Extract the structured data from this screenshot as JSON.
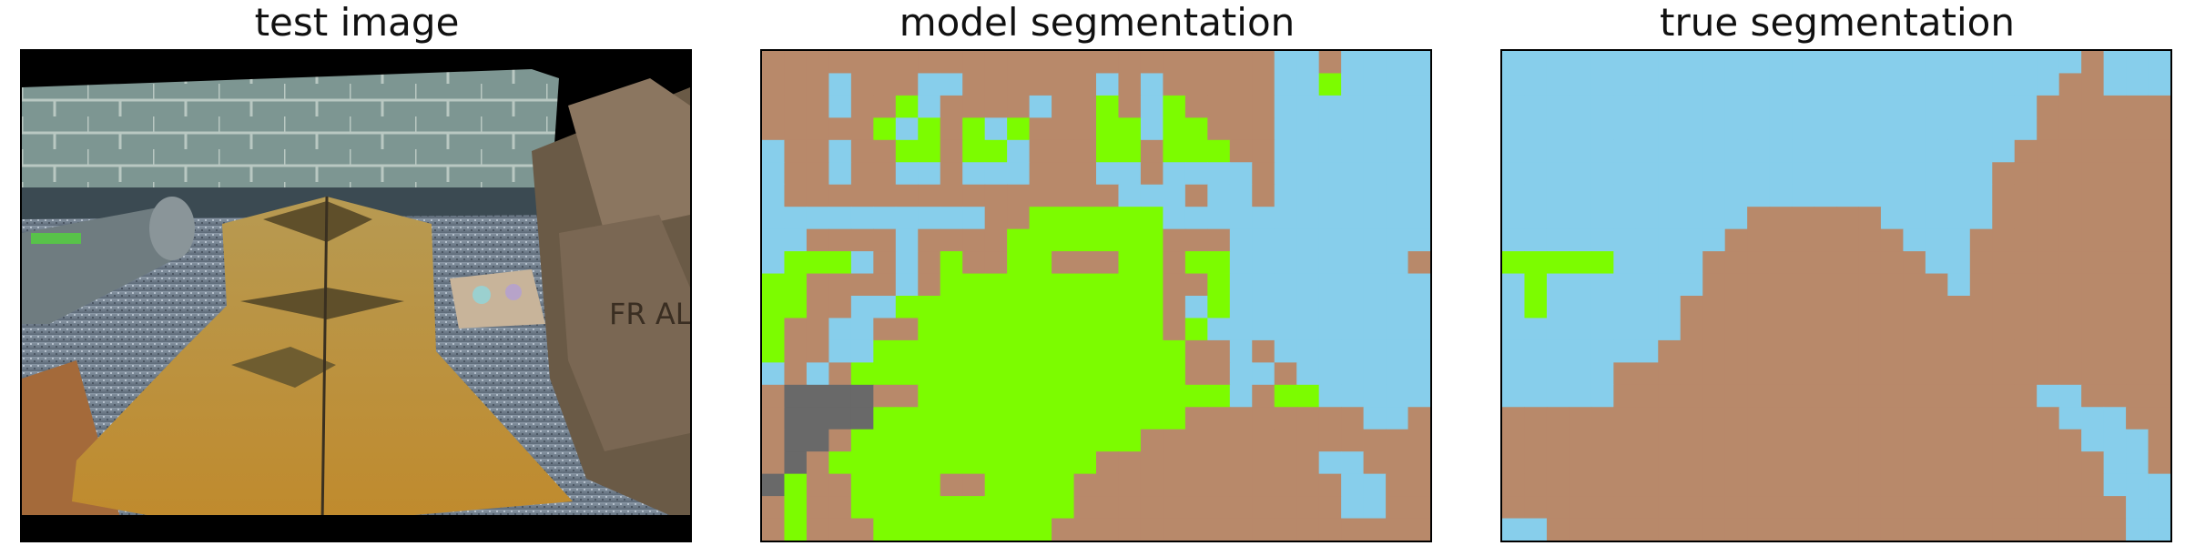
{
  "panels": [
    {
      "title": "test image"
    },
    {
      "title": "model segmentation"
    },
    {
      "title": "true segmentation"
    }
  ],
  "colors": {
    "sky": "#87ceeb",
    "ground": "#b8896a",
    "green": "#7cfc00",
    "gray": "#696969"
  },
  "grid": {
    "cols": 30,
    "rows": 22
  },
  "segmentations": {
    "model": [
      "BBBBBBBBBBBBBBBBBBBBBBBSSBSSSS",
      "BBBSBBBSSBBBBBBSBSBBBBBSSGSSSS",
      "BBBSBBGSBBBBSBBGBSGBBBBSSSSSSS",
      "BBBBBGSGBGSGBBBGGSGGBBBSSSSSSS",
      "SBBSBBGGBGGSBBBGGBGGGBBSSSSSSS",
      "SBBSBBSSBSSSBBBSSBSSSSBSSSSSSS",
      "SBBBBBBBBBBBBBBBSSSBSSBSSSSSSS",
      "SSSSSSSSSSBBGGGGGGSSSSSSSSSSSS",
      "SSBBBBSBBBBGGGGGGGBBBSSSSSSSSS",
      "SGGGSBSBGBBGGBBBGGBGGSSSSSSSSB",
      "GGBBBBSBGGGGGGGGGGBBGSSSSSSSSS",
      "GGBBSSGGGGGGGGGGGGBSGSSSSSSSSS",
      "GBBSSBBGGGGGGGGGGGBGSSSSSSSSSS",
      "GBBSSGGGGGGGGGGGGGGBBSBSSSSSSS",
      "SBSBGGGGGGGGGGGGGGGBBSSBSSSSSS",
      "BDDDDBBGGGGGGGGGGGGGGSBGGSSSSS",
      "BDDDDGGGGGGGGGGGGGGBBBBBBBBSSB",
      "BDDBGGGGGGGGGGGGGBBBBBBBBBBBBB",
      "BDBGGGGGGGGGGGGBBBBBBBBBBSSBBB",
      "DGBBGGGGBBGGGGBBBBBBBBBBBBSSBB",
      "BGBBGGGGGGGGGGBBBBBBBBBBBBSSBB",
      "BGBBBGGGGGGGGBBBBBBBBBBBBBBBBB"
    ],
    "truth": [
      "SSSSSSSSSSSSSSSSSSSSSSSSSSBSSS",
      "SSSSSSSSSSSSSSSSSSSSSSSSSBBSSS",
      "SSSSSSSSSSSSSSSSSSSSSSSSBBBBBB",
      "SSSSSSSSSSSSSSSSSSSSSSSSBBBBBB",
      "SSSSSSSSSSSSSSSSSSSSSSSBBBBBBB",
      "SSSSSSSSSSSSSSSSSSSSSSBBBBBBBB",
      "SSSSSSSSSSSSSSSSSSSSSSBBBBBBBB",
      "SSSSSSSSSSSBBBBBBSSSSSBBBBBBBB",
      "SSSSSSSSSSBBBBBBBBSSSBBBBBBBBB",
      "GGGGGSSSSBBBBBBBBBBSSBBBBBBBBB",
      "SGSSSSSSSBBBBBBBBBBBSBBBBBBBBB",
      "SGSSSSSSBBBBBBBBBBBBBBBBBBBBBB",
      "SSSSSSSSBBBBBBBBBBBBBBBBBBBBBB",
      "SSSSSSSBBBBBBBBBBBBBBBBBBBBBBB",
      "SSSSSBBBBBBBBBBBBBBBBBBBBBBBBB",
      "SSSSSBBBBBBBBBBBBBBBBBBBSSBBBB",
      "BBBBBBBBBBBBBBBBBBBBBBBBBSSSBB",
      "BBBBBBBBBBBBBBBBBBBBBBBBBBSSSB",
      "BBBBBBBBBBBBBBBBBBBBBBBBBBBSSB",
      "BBBBBBBBBBBBBBBBBBBBBBBBBBBSSS",
      "BBBBBBBBBBBBBBBBBBBBBBBBBBBBSS",
      "SSBBBBBBBBBBBBBBBBBBBBBBBBBBSS"
    ]
  }
}
